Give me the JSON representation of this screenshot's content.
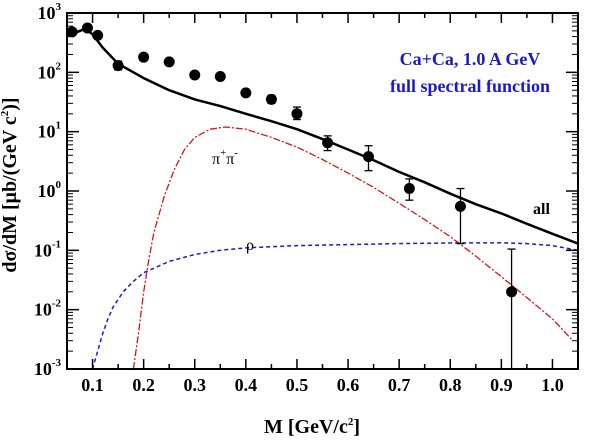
{
  "chart_data": {
    "type": "line",
    "xlabel": "M [GeV/c²]",
    "xlabel_main": "M [GeV/c",
    "xlabel_sup": "2",
    "xlabel_end": "]",
    "ylabel": "dσ/dM  [μb/(GeV c²)]",
    "ylabel_main": "dσ/dM  [μb/(GeV c",
    "ylabel_sup": "2",
    "ylabel_end": ")]",
    "xlim": [
      0.05,
      1.05
    ],
    "ylim": [
      0.001,
      1000
    ],
    "yscale": "log",
    "grid": false,
    "legend": {
      "position": "top-right",
      "line1": "Ca+Ca,  1.0 A GeV",
      "line2": "full spectral function",
      "color": "#1a1acc"
    },
    "x_ticks": [
      "0.1",
      "0.2",
      "0.3",
      "0.4",
      "0.5",
      "0.6",
      "0.7",
      "0.8",
      "0.9",
      "1.0"
    ],
    "y_ticks": [
      {
        "base": "10",
        "exp": "3"
      },
      {
        "base": "10",
        "exp": "2"
      },
      {
        "base": "10",
        "exp": "1"
      },
      {
        "base": "10",
        "exp": "0"
      },
      {
        "base": "10",
        "exp": "-1"
      },
      {
        "base": "10",
        "exp": "-2"
      },
      {
        "base": "10",
        "exp": "-3"
      }
    ],
    "annotations": {
      "pipi_base": "π",
      "pipi_sup1": "+",
      "pipi_mid": "π",
      "pipi_sup2": "-",
      "rho": "ρ",
      "all": "all"
    },
    "series": [
      {
        "key": "all",
        "style": "solid",
        "color": "#000000",
        "x": [
          0.06,
          0.07,
          0.08,
          0.09,
          0.1,
          0.12,
          0.15,
          0.18,
          0.2,
          0.25,
          0.3,
          0.35,
          0.4,
          0.45,
          0.5,
          0.55,
          0.6,
          0.65,
          0.7,
          0.75,
          0.8,
          0.85,
          0.9,
          0.95,
          1.0,
          1.05
        ],
        "y": [
          400,
          480,
          520,
          510,
          440,
          260,
          140,
          100,
          80,
          50,
          35,
          27,
          20,
          15,
          11,
          7.5,
          5.0,
          3.3,
          2.1,
          1.4,
          0.9,
          0.6,
          0.42,
          0.28,
          0.19,
          0.13
        ]
      },
      {
        "key": "pipi",
        "style": "dashdot",
        "color": "#dd1111",
        "x": [
          0.18,
          0.19,
          0.2,
          0.21,
          0.22,
          0.24,
          0.26,
          0.28,
          0.3,
          0.33,
          0.36,
          0.4,
          0.45,
          0.5,
          0.55,
          0.6,
          0.65,
          0.7,
          0.75,
          0.8,
          0.85,
          0.9,
          0.95,
          1.0,
          1.04
        ],
        "y": [
          0.001,
          0.004,
          0.02,
          0.07,
          0.2,
          0.8,
          2.3,
          5.0,
          8.0,
          11,
          12,
          11,
          8,
          5.5,
          3.4,
          2.0,
          1.15,
          0.62,
          0.33,
          0.17,
          0.08,
          0.036,
          0.016,
          0.007,
          0.003
        ]
      },
      {
        "key": "rho",
        "style": "dashed",
        "color": "#1a1acc",
        "x": [
          0.1,
          0.11,
          0.12,
          0.13,
          0.14,
          0.16,
          0.18,
          0.2,
          0.25,
          0.3,
          0.35,
          0.4,
          0.5,
          0.6,
          0.7,
          0.8,
          0.9,
          0.95,
          1.0,
          1.05
        ],
        "y": [
          0.001,
          0.002,
          0.004,
          0.007,
          0.011,
          0.02,
          0.03,
          0.042,
          0.065,
          0.085,
          0.1,
          0.11,
          0.12,
          0.125,
          0.13,
          0.133,
          0.134,
          0.13,
          0.12,
          0.1
        ]
      }
    ],
    "data_points": {
      "name": "data",
      "x": [
        0.06,
        0.09,
        0.11,
        0.15,
        0.2,
        0.25,
        0.3,
        0.35,
        0.4,
        0.45,
        0.5,
        0.56,
        0.64,
        0.72,
        0.82,
        0.92
      ],
      "y": [
        480,
        560,
        420,
        130,
        180,
        150,
        90,
        85,
        45,
        35,
        20,
        6.5,
        3.8,
        1.1,
        0.55,
        0.02
      ],
      "err_lo": [
        420,
        500,
        380,
        110,
        165,
        138,
        83,
        78,
        40,
        30,
        16,
        4.8,
        2.2,
        0.7,
        0.13,
        0.001
      ],
      "err_hi": [
        540,
        620,
        460,
        155,
        195,
        162,
        98,
        92,
        50,
        41,
        26,
        8.5,
        5.8,
        1.6,
        1.1,
        0.105
      ]
    }
  }
}
